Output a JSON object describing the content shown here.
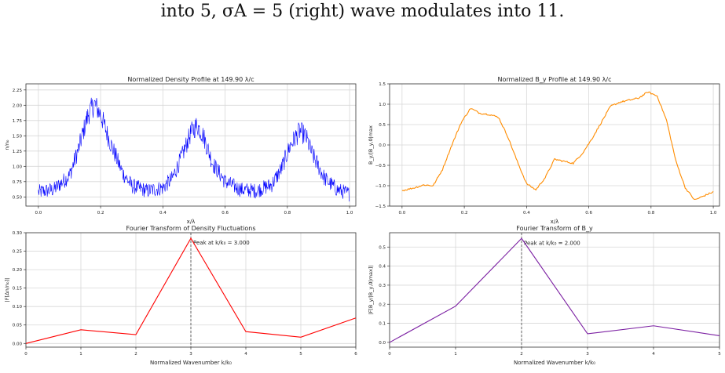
{
  "caption": "into 5, σA = 5 (right) wave modulates into 11.",
  "chart_data": [
    {
      "id": "density",
      "type": "line",
      "title": "Normalized Density Profile at 149.90 λ/c",
      "xlabel": "x/λ",
      "ylabel": "n/n₀",
      "xlim": [
        -0.04,
        1.02
      ],
      "ylim": [
        0.35,
        2.35
      ],
      "xticks": [
        0.0,
        0.2,
        0.4,
        0.6,
        0.8,
        1.0
      ],
      "yticks": [
        0.5,
        0.75,
        1.0,
        1.25,
        1.5,
        1.75,
        2.0,
        2.25
      ],
      "ytick_labels": [
        "0.50",
        "0.75",
        "1.00",
        "1.25",
        "1.50",
        "1.75",
        "2.00",
        "2.25"
      ],
      "grid": true,
      "color": "#0000ff",
      "noisy": true,
      "series": [
        {
          "x": [
            0.0,
            0.05,
            0.1,
            0.13,
            0.16,
            0.18,
            0.2,
            0.23,
            0.27,
            0.3,
            0.35,
            0.4,
            0.43,
            0.46,
            0.49,
            0.51,
            0.53,
            0.56,
            0.6,
            0.65,
            0.7,
            0.75,
            0.78,
            0.81,
            0.84,
            0.86,
            0.88,
            0.92,
            0.96,
            1.0
          ],
          "y": [
            0.58,
            0.62,
            0.85,
            1.3,
            1.85,
            2.02,
            1.85,
            1.4,
            0.9,
            0.68,
            0.6,
            0.65,
            0.8,
            1.15,
            1.55,
            1.68,
            1.5,
            1.05,
            0.75,
            0.62,
            0.6,
            0.7,
            0.95,
            1.35,
            1.58,
            1.48,
            1.2,
            0.8,
            0.62,
            0.55
          ]
        }
      ]
    },
    {
      "id": "by",
      "type": "line",
      "title": "Normalized B_y Profile at 149.90 λ/c",
      "xlabel": "x/λ",
      "ylabel": "B_y/|B_y,0|max",
      "xlim": [
        -0.04,
        1.02
      ],
      "ylim": [
        -1.5,
        1.5
      ],
      "xticks": [
        0.0,
        0.2,
        0.4,
        0.6,
        0.8,
        1.0
      ],
      "yticks": [
        -1.5,
        -1.0,
        -0.5,
        0.0,
        0.5,
        1.0,
        1.5
      ],
      "ytick_labels": [
        "−1.5",
        "−1.0",
        "−0.5",
        "0.0",
        "0.5",
        "1.0",
        "1.5"
      ],
      "grid": true,
      "color": "#ff8c00",
      "noisy": false,
      "series": [
        {
          "x": [
            0.0,
            0.04,
            0.07,
            0.1,
            0.13,
            0.16,
            0.19,
            0.22,
            0.25,
            0.28,
            0.31,
            0.34,
            0.37,
            0.4,
            0.43,
            0.46,
            0.49,
            0.52,
            0.55,
            0.58,
            0.61,
            0.64,
            0.67,
            0.7,
            0.73,
            0.76,
            0.79,
            0.82,
            0.85,
            0.88,
            0.91,
            0.94,
            0.97,
            1.0
          ],
          "y": [
            -1.12,
            -1.05,
            -0.98,
            -1.0,
            -0.6,
            0.0,
            0.55,
            0.9,
            0.78,
            0.75,
            0.68,
            0.2,
            -0.4,
            -0.95,
            -1.1,
            -0.8,
            -0.35,
            -0.4,
            -0.45,
            -0.2,
            0.15,
            0.55,
            0.95,
            1.05,
            1.1,
            1.15,
            1.3,
            1.2,
            0.6,
            -0.4,
            -1.05,
            -1.35,
            -1.25,
            -1.15
          ]
        }
      ]
    },
    {
      "id": "fft_density",
      "type": "line",
      "title": "Fourier Transform of Density Fluctuations",
      "xlabel": "Normalized Wavenumber k/k₀",
      "ylabel": "|F[Δn/n₀]|",
      "xlim": [
        0,
        6
      ],
      "ylim": [
        -0.01,
        0.3
      ],
      "xticks": [
        0,
        1,
        2,
        3,
        4,
        5,
        6
      ],
      "yticks": [
        0.0,
        0.05,
        0.1,
        0.15,
        0.2,
        0.25,
        0.3
      ],
      "ytick_labels": [
        "0.00",
        "0.05",
        "0.10",
        "0.15",
        "0.20",
        "0.25",
        "0.30"
      ],
      "grid": true,
      "color": "#ff0000",
      "noisy": false,
      "peak_x": 3,
      "peak_label": "Peak at k/k₀ = 3.000",
      "series": [
        {
          "x": [
            0,
            1,
            2,
            3,
            4,
            5,
            6
          ],
          "y": [
            0.0,
            0.037,
            0.024,
            0.285,
            0.032,
            0.017,
            0.069
          ]
        }
      ]
    },
    {
      "id": "fft_by",
      "type": "line",
      "title": "Fourier Transform of B_y",
      "xlabel": "Normalized Wavenumber k/k₀",
      "ylabel": "|F[B_y/|B_y,0|max]|",
      "xlim": [
        0,
        5
      ],
      "ylim": [
        -0.025,
        0.575
      ],
      "xticks": [
        0,
        1,
        2,
        3,
        4,
        5
      ],
      "yticks": [
        0.0,
        0.1,
        0.2,
        0.3,
        0.4,
        0.5
      ],
      "ytick_labels": [
        "0.0",
        "0.1",
        "0.2",
        "0.3",
        "0.4",
        "0.5"
      ],
      "grid": true,
      "color": "#7b1fa2",
      "noisy": false,
      "peak_x": 2,
      "peak_label": "Peak at k/k₀ = 2.000",
      "series": [
        {
          "x": [
            0,
            1,
            2,
            3,
            4,
            5
          ],
          "y": [
            0.0,
            0.19,
            0.545,
            0.045,
            0.087,
            0.035
          ]
        }
      ]
    }
  ]
}
